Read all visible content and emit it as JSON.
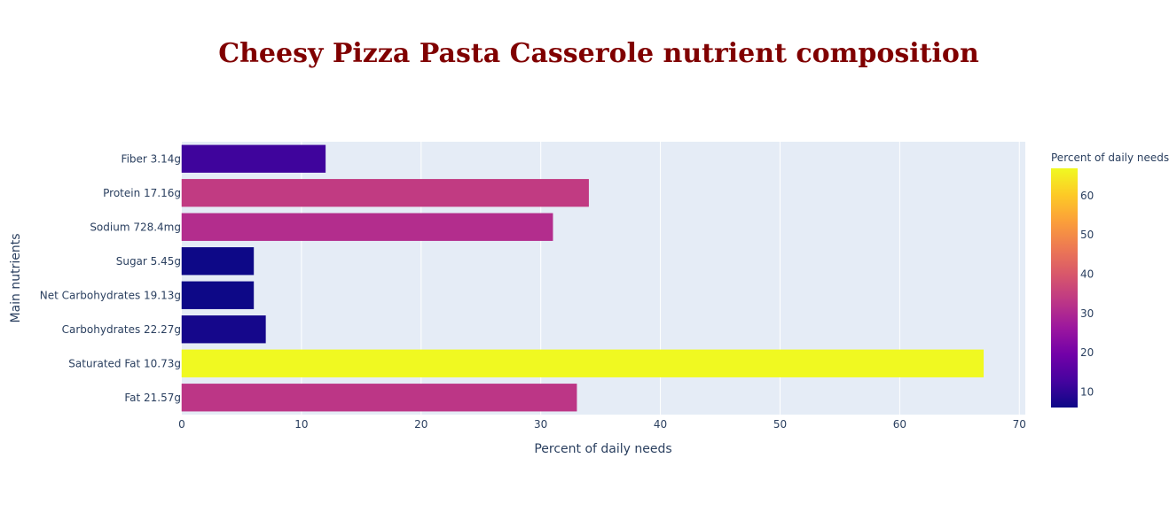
{
  "chart_data": {
    "type": "bar",
    "orientation": "horizontal",
    "title": "Cheesy Pizza Pasta Casserole nutrient composition",
    "xlabel": "Percent of daily needs",
    "ylabel": "Main nutrients",
    "categories": [
      "Fiber 3.14g",
      "Protein 17.16g",
      "Sodium 728.4mg",
      "Sugar 5.45g",
      "Net Carbohydrates 19.13g",
      "Carbohydrates 22.27g",
      "Saturated Fat 10.73g",
      "Fat 21.57g"
    ],
    "values": [
      12,
      34,
      31,
      6,
      6,
      7,
      67,
      33
    ],
    "xlim": [
      0,
      70.5
    ],
    "xticks": [
      0,
      10,
      20,
      30,
      40,
      50,
      60,
      70
    ],
    "grid": true,
    "colorbar": {
      "title": "Percent of daily needs",
      "range": [
        6,
        67
      ],
      "ticks": [
        10,
        20,
        30,
        40,
        50,
        60
      ],
      "colorscale": [
        "#0d0887",
        "#46039f",
        "#7201a8",
        "#9c179e",
        "#bd3786",
        "#d8576b",
        "#ed7953",
        "#fb9f3a",
        "#fdca26",
        "#f0f921"
      ]
    },
    "plot_background": "#e5ecf6",
    "title_color": "#800000"
  }
}
